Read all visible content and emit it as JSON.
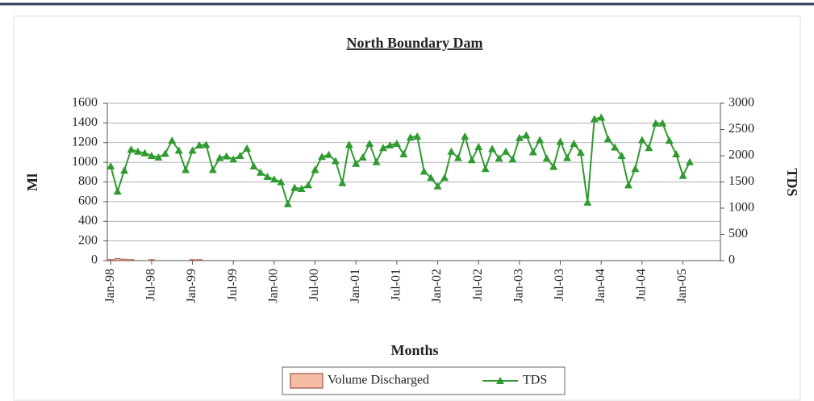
{
  "chart_data": {
    "type": "bar_line",
    "title": "North Boundary Dam",
    "x_label": "Months",
    "y_label": "Ml",
    "y2_label": "TDS",
    "categories": [
      "Jan-98",
      null,
      null,
      null,
      null,
      null,
      "Jul-98",
      null,
      null,
      null,
      null,
      null,
      "Jan-99",
      null,
      null,
      null,
      null,
      null,
      "Jul-99",
      null,
      null,
      null,
      null,
      null,
      "Jan-00",
      null,
      null,
      null,
      null,
      null,
      "Jul-00",
      null,
      null,
      null,
      null,
      null,
      "Jan-01",
      null,
      null,
      null,
      null,
      null,
      "Jul-01",
      null,
      null,
      null,
      null,
      null,
      "Jan-02",
      null,
      null,
      null,
      null,
      null,
      "Jul-02",
      null,
      null,
      null,
      null,
      null,
      "Jan-03",
      null,
      null,
      null,
      null,
      null,
      "Jul-03",
      null,
      null,
      null,
      null,
      null,
      "Jan-04",
      null,
      null,
      null,
      null,
      null,
      "Jul-04",
      null,
      null,
      null,
      null,
      null,
      "Jan-05",
      null,
      null,
      null,
      null,
      null
    ],
    "series": [
      {
        "name": "Volume Discharged",
        "type": "bar",
        "color": "#f6bca6",
        "values": [
          10,
          20,
          15,
          10,
          0,
          0,
          10,
          0,
          0,
          0,
          0,
          0,
          10,
          10,
          0,
          0,
          0,
          0,
          0,
          0,
          0,
          0,
          0,
          0,
          0,
          0,
          0,
          0,
          0,
          0,
          0,
          0,
          0,
          0,
          0,
          0,
          0,
          0,
          0,
          0,
          0,
          0,
          0,
          0,
          0,
          0,
          0,
          0,
          0,
          0,
          0,
          0,
          0,
          0,
          0,
          0,
          0,
          0,
          0,
          0,
          0,
          0,
          0,
          0,
          0,
          0,
          0,
          0,
          0,
          0,
          0,
          0,
          0,
          0,
          0,
          0,
          0,
          0,
          0,
          0,
          0,
          0,
          0,
          0,
          0,
          0,
          0,
          0,
          0,
          0
        ]
      },
      {
        "name": "TDS",
        "type": "line",
        "axis": "y2",
        "color": "#2f9a30",
        "values": [
          1800,
          1320,
          1720,
          2120,
          2080,
          2050,
          2000,
          1970,
          2040,
          2290,
          2100,
          1730,
          2100,
          2200,
          2210,
          1730,
          1960,
          1990,
          1930,
          2000,
          2140,
          1800,
          1680,
          1600,
          1550,
          1500,
          1080,
          1390,
          1370,
          1440,
          1730,
          1980,
          2020,
          1900,
          1480,
          2210,
          1850,
          1970,
          2230,
          1880,
          2150,
          2200,
          2230,
          2030,
          2350,
          2370,
          1700,
          1580,
          1420,
          1580,
          2080,
          1960,
          2370,
          1920,
          2170,
          1750,
          2130,
          1950,
          2080,
          1930,
          2340,
          2390,
          2070,
          2300,
          1950,
          1790,
          2270,
          1960,
          2230,
          2060,
          1110,
          2700,
          2730,
          2320,
          2160,
          2000,
          1440,
          1750,
          2300,
          2150,
          2620,
          2620,
          2290,
          2030,
          1620,
          1880,
          null,
          null,
          null,
          null
        ]
      }
    ],
    "ylim": [
      0,
      1600
    ],
    "yticks": [
      0,
      200,
      400,
      600,
      800,
      1000,
      1200,
      1400,
      1600
    ],
    "y2lim": [
      0,
      3000
    ],
    "y2ticks": [
      0,
      500,
      1000,
      1500,
      2000,
      2500,
      3000
    ],
    "grid": true,
    "legend": "bottom"
  }
}
